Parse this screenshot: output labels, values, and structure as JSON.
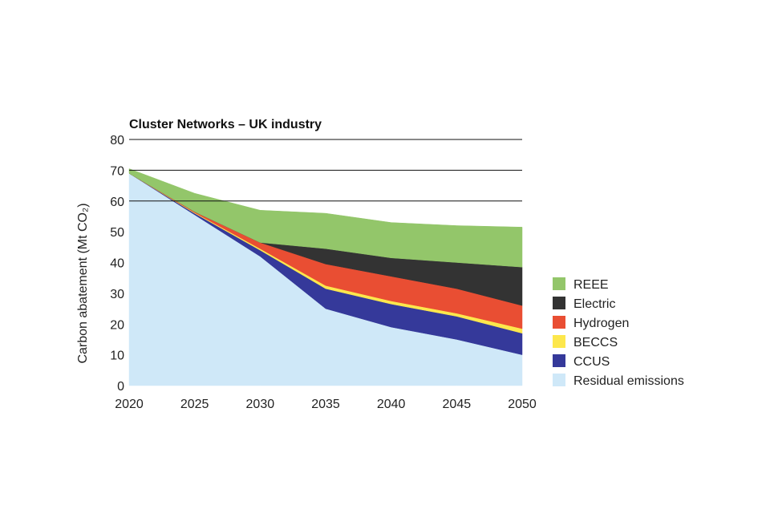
{
  "chart_data": {
    "type": "area",
    "stacked": true,
    "title": "Cluster Networks – UK industry",
    "xlabel": "",
    "ylabel": "Carbon abatement (Mt CO₂)",
    "x": [
      2020,
      2025,
      2030,
      2035,
      2040,
      2045,
      2050
    ],
    "ylim": [
      0,
      80
    ],
    "yticks": [
      0,
      10,
      20,
      30,
      40,
      50,
      60,
      70,
      80
    ],
    "gridlines": [
      60,
      70,
      80
    ],
    "series": [
      {
        "name": "Residual emissions",
        "color": "#cfe8f8",
        "values": [
          69,
          55.5,
          42,
          25,
          19,
          15,
          10
        ]
      },
      {
        "name": "CCUS",
        "color": "#35399a",
        "values": [
          0,
          0.5,
          2,
          6.5,
          7.5,
          7.5,
          7
        ]
      },
      {
        "name": "BECCS",
        "color": "#fde74c",
        "values": [
          0,
          0.2,
          0.5,
          1,
          1,
          1,
          1.5
        ]
      },
      {
        "name": "Hydrogen",
        "color": "#e94e33",
        "values": [
          0,
          0.3,
          2,
          7,
          8,
          8,
          7.5
        ]
      },
      {
        "name": "Electric",
        "color": "#333333",
        "values": [
          0,
          0,
          0,
          5,
          6,
          8.5,
          12.5
        ]
      },
      {
        "name": "REEE",
        "color": "#93c66a",
        "values": [
          1.5,
          6,
          10.5,
          11.5,
          11.5,
          12,
          13
        ]
      }
    ],
    "legend": {
      "position": "right",
      "items": [
        "REEE",
        "Electric",
        "Hydrogen",
        "BECCS",
        "CCUS",
        "Residual emissions"
      ]
    }
  }
}
